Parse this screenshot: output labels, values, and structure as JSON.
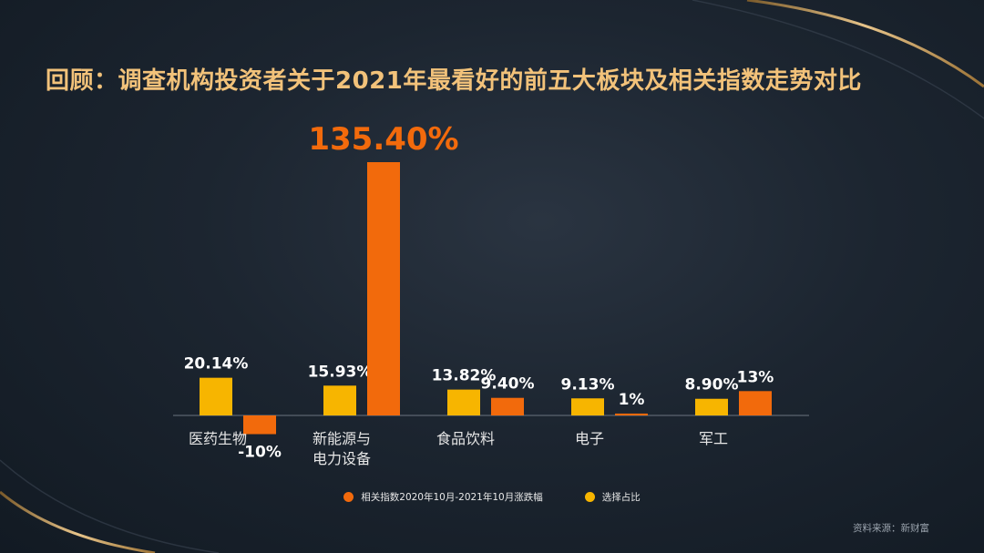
{
  "title": "回顾：调查机构投资者关于2021年最看好的前五大板块及相关指数走势对比",
  "source": "资料来源：新财富",
  "colors": {
    "index_change": "#f26a0c",
    "selection_share": "#f7b500",
    "title": "#f2c27a"
  },
  "legend": {
    "index_change": "相关指数2020年10月-2021年10月涨跌幅",
    "selection_share": "选择占比"
  },
  "chart_data": {
    "type": "bar",
    "categories": [
      [
        "医药生物"
      ],
      [
        "新能源与",
        "电力设备"
      ],
      [
        "食品饮料"
      ],
      [
        "电子"
      ],
      [
        "军工"
      ]
    ],
    "series": [
      {
        "key": "selection_share",
        "name": "选择占比",
        "values": [
          20.14,
          15.93,
          13.82,
          9.13,
          8.9
        ],
        "labels": [
          "20.14%",
          "15.93%",
          "13.82%",
          "9.13%",
          "8.90%"
        ]
      },
      {
        "key": "index_change",
        "name": "相关指数2020年10月-2021年10月涨跌幅",
        "values": [
          -10,
          135.4,
          9.4,
          1,
          13
        ],
        "labels": [
          "-10%",
          "135.40%",
          "9.40%",
          "1%",
          "13%"
        ]
      }
    ],
    "ylim": [
      -12,
      140
    ],
    "grid": false,
    "legend_position": "bottom"
  }
}
